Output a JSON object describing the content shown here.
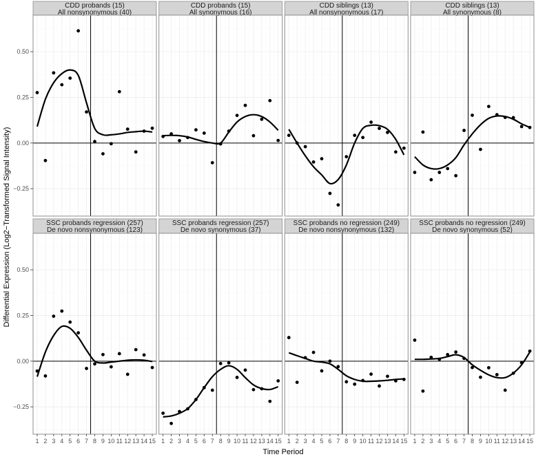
{
  "chart_data": {
    "type": "scatter",
    "xlabel": "Time Period",
    "ylabel": "Differential Expression (Log2−Transformed Signal Intensity)",
    "xlim": [
      0.5,
      15.5
    ],
    "ylim": [
      -0.4,
      0.7
    ],
    "x": [
      1,
      2,
      3,
      4,
      5,
      6,
      7,
      8,
      9,
      10,
      11,
      12,
      13,
      14,
      15
    ],
    "x_ticks": [
      "1",
      "2",
      "3",
      "4",
      "5",
      "6",
      "7",
      "8",
      "9",
      "10",
      "11",
      "12",
      "13",
      "14",
      "15"
    ],
    "y_ticks": [
      {
        "v": -0.25,
        "label": "−0.25"
      },
      {
        "v": 0,
        "label": "0.00"
      },
      {
        "v": 0.25,
        "label": "0.25"
      },
      {
        "v": 0.5,
        "label": "0.50"
      }
    ],
    "vline_x": 7.5,
    "hline_y": 0,
    "grid": true,
    "panels": [
      {
        "title1": "CDD probands (15)",
        "title2": "All nonsynonymous (40)",
        "points": [
          0.276,
          -0.096,
          0.384,
          0.319,
          0.355,
          0.614,
          0.17,
          0.008,
          -0.059,
          -0.004,
          0.281,
          0.076,
          -0.049,
          0.065,
          0.081
        ],
        "smooth": [
          0.09,
          0.24,
          0.33,
          0.38,
          0.4,
          0.37,
          0.22,
          0.08,
          0.045,
          0.045,
          0.05,
          0.058,
          0.062,
          0.065,
          0.06
        ]
      },
      {
        "title1": "CDD probands (15)",
        "title2": "All synonymous (16)",
        "points": [
          0.036,
          0.05,
          0.013,
          0.03,
          0.072,
          0.054,
          -0.108,
          -0.005,
          0.065,
          0.151,
          0.206,
          0.04,
          0.13,
          0.232,
          0.014
        ],
        "smooth": [
          0.04,
          0.042,
          0.04,
          0.033,
          0.02,
          0.008,
          0.0,
          0.0,
          0.06,
          0.115,
          0.145,
          0.155,
          0.145,
          0.115,
          0.07
        ]
      },
      {
        "title1": "CDD siblings (13)",
        "title2": "All nonsynonymous (17)",
        "points": [
          0.042,
          0.0,
          -0.02,
          -0.104,
          -0.086,
          -0.276,
          -0.339,
          -0.075,
          0.042,
          0.03,
          0.114,
          0.08,
          0.058,
          -0.049,
          -0.028
        ],
        "smooth": [
          0.075,
          0.0,
          -0.07,
          -0.13,
          -0.175,
          -0.222,
          -0.2,
          -0.12,
          0.0,
          0.08,
          0.097,
          0.095,
          0.075,
          0.02,
          -0.065
        ]
      },
      {
        "title1": "CDD siblings (13)",
        "title2": "All synonymous (8)",
        "points": [
          -0.161,
          0.06,
          -0.201,
          -0.161,
          -0.14,
          -0.179,
          0.069,
          0.152,
          -0.035,
          0.2,
          0.155,
          0.14,
          0.139,
          0.09,
          0.085
        ],
        "smooth": [
          -0.075,
          -0.12,
          -0.14,
          -0.14,
          -0.12,
          -0.08,
          -0.01,
          0.05,
          0.1,
          0.135,
          0.148,
          0.145,
          0.13,
          0.105,
          0.085
        ]
      },
      {
        "title1": "SSC probands regression (257)",
        "title2": "De novo nonsynonymous (123)",
        "points": [
          -0.054,
          -0.081,
          0.246,
          0.274,
          0.214,
          0.155,
          -0.04,
          -0.015,
          0.036,
          -0.031,
          0.041,
          -0.072,
          0.063,
          0.034,
          -0.035
        ],
        "smooth": [
          -0.085,
          0.05,
          0.14,
          0.19,
          0.18,
          0.13,
          0.06,
          0.0,
          -0.01,
          -0.005,
          0.0,
          0.005,
          0.007,
          0.005,
          -0.002
        ]
      },
      {
        "title1": "SSC probands regression (257)",
        "title2": "De novo synonymous (37)",
        "points": [
          -0.285,
          -0.341,
          -0.276,
          -0.261,
          -0.21,
          -0.145,
          -0.159,
          -0.013,
          -0.009,
          -0.089,
          -0.049,
          -0.156,
          -0.151,
          -0.22,
          -0.108
        ],
        "smooth": [
          -0.305,
          -0.3,
          -0.285,
          -0.26,
          -0.21,
          -0.145,
          -0.085,
          -0.045,
          -0.025,
          -0.045,
          -0.09,
          -0.13,
          -0.15,
          -0.155,
          -0.14
        ]
      },
      {
        "title1": "SSC probands no regression (249)",
        "title2": "De novo nonsynonymous (132)",
        "points": [
          0.129,
          -0.116,
          0.019,
          0.048,
          -0.053,
          0.0,
          -0.03,
          -0.113,
          -0.126,
          -0.106,
          -0.071,
          -0.136,
          -0.083,
          -0.108,
          -0.1
        ],
        "smooth": [
          0.046,
          0.03,
          0.015,
          0.0,
          -0.005,
          -0.015,
          -0.045,
          -0.08,
          -0.1,
          -0.11,
          -0.11,
          -0.108,
          -0.105,
          -0.1,
          -0.097
        ]
      },
      {
        "title1": "SSC probands no regression (249)",
        "title2": "De novo synonymous (52)",
        "points": [
          0.115,
          -0.164,
          0.021,
          0.01,
          0.036,
          0.05,
          0.015,
          -0.035,
          -0.088,
          -0.036,
          -0.074,
          -0.159,
          -0.066,
          -0.008,
          0.055
        ],
        "smooth": [
          0.01,
          0.01,
          0.012,
          0.015,
          0.025,
          0.035,
          0.02,
          -0.02,
          -0.05,
          -0.075,
          -0.09,
          -0.09,
          -0.065,
          -0.02,
          0.05
        ]
      }
    ]
  }
}
